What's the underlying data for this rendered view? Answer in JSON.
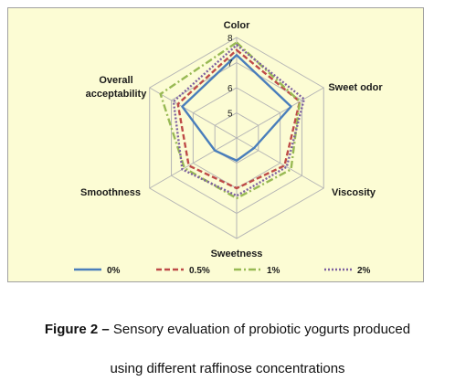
{
  "chart_data": {
    "type": "radar",
    "categories": [
      "Color",
      "Sweet odor",
      "Viscosity",
      "Sweetness",
      "Smoothness",
      "Overall acceptability"
    ],
    "rlim": [
      4,
      8
    ],
    "rticks": [
      5,
      6,
      7,
      8
    ],
    "grid": true,
    "legend_position": "bottom",
    "series": [
      {
        "name": "0%",
        "values": [
          7.3,
          6.5,
          4.8,
          4.9,
          5.0,
          6.5
        ],
        "color": "#4a7ebb",
        "dash": "solid"
      },
      {
        "name": "0.5%",
        "values": [
          7.5,
          6.9,
          6.2,
          6.0,
          6.2,
          6.7
        ],
        "color": "#be4b48",
        "dash": "dash"
      },
      {
        "name": "1%",
        "values": [
          7.8,
          6.9,
          6.5,
          6.4,
          6.4,
          7.5
        ],
        "color": "#98b954",
        "dash": "dashdot"
      },
      {
        "name": "2%",
        "values": [
          7.7,
          7.1,
          6.3,
          6.3,
          6.5,
          6.9
        ],
        "color": "#7d60a0",
        "dash": "dot"
      }
    ]
  },
  "caption": {
    "figure_label": "Figure 2 –",
    "line1_text": " Sensory evaluation of probiotic yogurts produced",
    "line2_text": "using different raffinose concentrations"
  }
}
